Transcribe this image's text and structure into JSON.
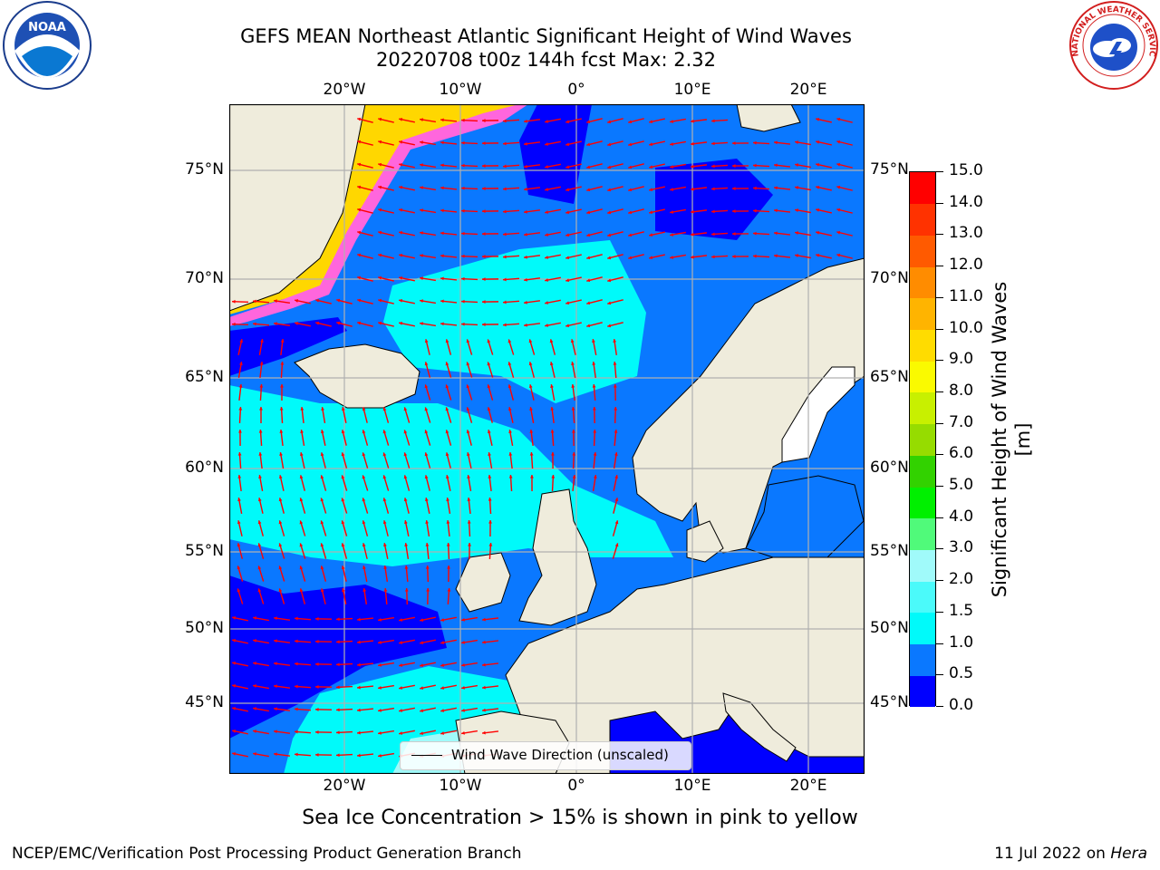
{
  "header": {
    "title_line1": "GEFS MEAN Northeast Atlantic Significant Height of Wind Waves",
    "title_line2": "20220708 t00z 144h fcst   Max: 2.32"
  },
  "logos": {
    "left": "NOAA",
    "right": "NATIONAL WEATHER SERVICE"
  },
  "map": {
    "lon_labels": [
      "20°W",
      "10°W",
      "0°",
      "10°E",
      "20°E"
    ],
    "lat_labels": [
      "75°N",
      "70°N",
      "65°N",
      "60°N",
      "55°N",
      "50°N",
      "45°N"
    ],
    "legend_label": "Wind Wave Direction (unscaled)",
    "colors": {
      "land": "#efecdc",
      "ice_free": "#ffffff",
      "arrow": "#ff0000",
      "grid": "#b0b0b0"
    }
  },
  "colorbar": {
    "title": "Significant Height of Wind Waves [m]",
    "ticks": [
      "0.0",
      "0.5",
      "1.0",
      "1.5",
      "2.0",
      "3.0",
      "4.0",
      "5.0",
      "6.0",
      "7.0",
      "8.0",
      "9.0",
      "10.0",
      "11.0",
      "12.0",
      "13.0",
      "14.0",
      "15.0"
    ],
    "colors": [
      "#0000ff",
      "#0a78ff",
      "#00fafa",
      "#4bfafa",
      "#a0fafa",
      "#50fa7a",
      "#00f000",
      "#32d200",
      "#96dc00",
      "#c8f000",
      "#fafa00",
      "#ffdc00",
      "#ffb400",
      "#ff8c00",
      "#ff5a00",
      "#ff3200",
      "#ff0000"
    ]
  },
  "notes": {
    "ice": "Sea Ice Concentration > 15% is shown in pink to yellow"
  },
  "footer": {
    "left": "NCEP/EMC/Verification Post Processing Product Generation Branch",
    "date": "11 Jul 2022 on ",
    "machine": "Hera"
  }
}
